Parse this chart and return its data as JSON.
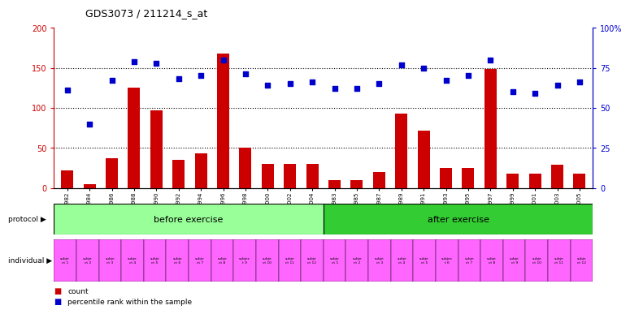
{
  "title": "GDS3073 / 211214_s_at",
  "gsm_labels": [
    "GSM214982",
    "GSM214984",
    "GSM214986",
    "GSM214988",
    "GSM214990",
    "GSM214992",
    "GSM214994",
    "GSM214996",
    "GSM214998",
    "GSM215000",
    "GSM215002",
    "GSM215004",
    "GSM214983",
    "GSM214985",
    "GSM214987",
    "GSM214989",
    "GSM214991",
    "GSM214993",
    "GSM214995",
    "GSM214997",
    "GSM214999",
    "GSM215001",
    "GSM215003",
    "GSM215005"
  ],
  "bar_values": [
    22,
    5,
    37,
    125,
    97,
    35,
    43,
    168,
    50,
    30,
    30,
    30,
    10,
    10,
    20,
    93,
    72,
    25,
    25,
    148,
    18,
    18,
    29,
    18
  ],
  "dot_values_pct": [
    61,
    40,
    67,
    79,
    78,
    68,
    70,
    80,
    71,
    64,
    65,
    66,
    62,
    62,
    65,
    77,
    75,
    67,
    70,
    80,
    60,
    59,
    64,
    66
  ],
  "protocol_labels": [
    "before exercise",
    "after exercise"
  ],
  "individual_labels": [
    "subje\nct 1",
    "subje\nct 2",
    "subje\nct 3",
    "subje\nct 4",
    "subje\nct 5",
    "subje\nct 6",
    "subje\nct 7",
    "subje\nct 8",
    "subjec\nt 9",
    "subje\nct 10",
    "subje\nct 11",
    "subje\nct 12",
    "subje\nct 1",
    "subje\nct 2",
    "subje\nct 3",
    "subje\nct 4",
    "subje\nct 5",
    "subjec\nt 6",
    "subje\nct 7",
    "subje\nct 8",
    "subje\nct 9",
    "subje\nct 10",
    "subje\nct 11",
    "subje\nct 12"
  ],
  "bar_color": "#cc0000",
  "dot_color": "#0000cc",
  "before_color": "#99ff99",
  "after_color": "#33cc33",
  "individual_color": "#ff66ff",
  "ylim_left": [
    0,
    200
  ],
  "ylim_right": [
    0,
    100
  ],
  "yticks_left": [
    0,
    50,
    100,
    150,
    200
  ],
  "yticks_right": [
    0,
    25,
    50,
    75,
    100
  ],
  "ytick_labels_right": [
    "0",
    "25",
    "50",
    "75",
    "100%"
  ],
  "background_color": "#ffffff",
  "legend_count_label": "count",
  "legend_pct_label": "percentile rank within the sample"
}
